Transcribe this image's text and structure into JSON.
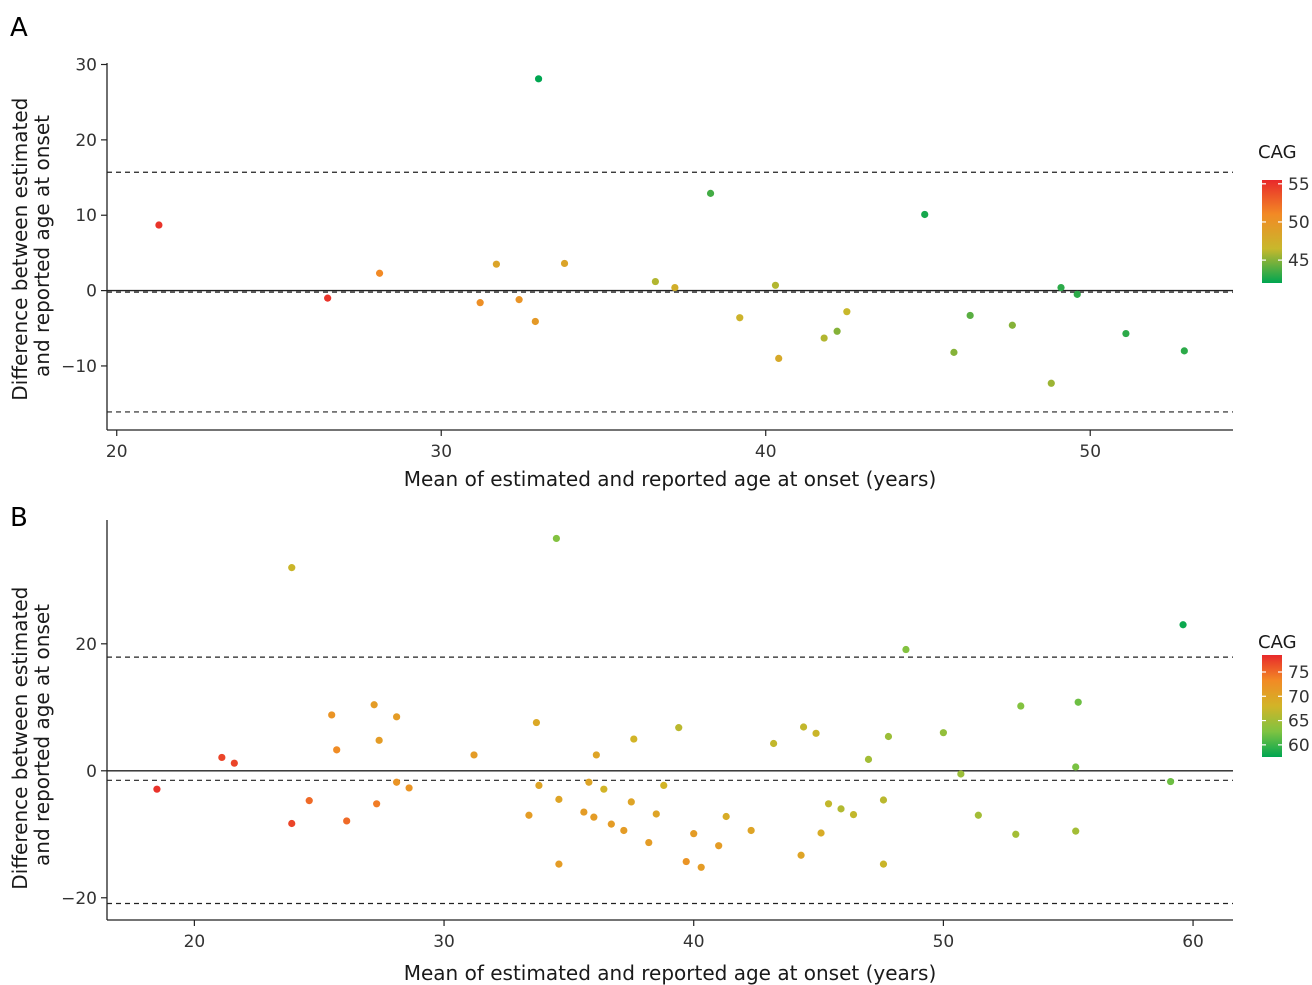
{
  "figure": {
    "panels": [
      "A",
      "B"
    ]
  },
  "chart_data": [
    {
      "type": "scatter",
      "panel": "A",
      "xlabel": "Mean of estimated and reported age at onset (years)",
      "ylabel": "Difference between estimated\nand reported age at onset",
      "xlim": [
        19.7,
        54.4
      ],
      "ylim": [
        -18.5,
        30.2
      ],
      "xticks": [
        20,
        30,
        40,
        50
      ],
      "yticks": [
        -10,
        0,
        10,
        20,
        30
      ],
      "reference_lines": {
        "zero": 0,
        "mean_difference": -0.2,
        "upper_limit": 15.7,
        "lower_limit": -16.1
      },
      "color_scale": {
        "title": "CAG",
        "min": 42,
        "max": 55.5,
        "ticks": [
          55,
          50,
          45
        ],
        "colors": [
          "#00a651",
          "#c8b82c",
          "#f28a25",
          "#e8292b"
        ]
      },
      "points": [
        {
          "x": 21.3,
          "y": 8.7,
          "cag": 55
        },
        {
          "x": 26.5,
          "y": -1.0,
          "cag": 55
        },
        {
          "x": 28.1,
          "y": 2.3,
          "cag": 51
        },
        {
          "x": 31.2,
          "y": -1.6,
          "cag": 50.5
        },
        {
          "x": 31.7,
          "y": 3.5,
          "cag": 48.5
        },
        {
          "x": 32.4,
          "y": -1.2,
          "cag": 50
        },
        {
          "x": 32.9,
          "y": -4.1,
          "cag": 49.5
        },
        {
          "x": 33.0,
          "y": 28.1,
          "cag": 42
        },
        {
          "x": 33.8,
          "y": 3.6,
          "cag": 48.5
        },
        {
          "x": 36.6,
          "y": 1.2,
          "cag": 46
        },
        {
          "x": 37.2,
          "y": 0.4,
          "cag": 47.5
        },
        {
          "x": 38.3,
          "y": 12.9,
          "cag": 43.5
        },
        {
          "x": 39.2,
          "y": -3.6,
          "cag": 47
        },
        {
          "x": 40.3,
          "y": 0.7,
          "cag": 46
        },
        {
          "x": 40.4,
          "y": -9.0,
          "cag": 48
        },
        {
          "x": 41.8,
          "y": -6.3,
          "cag": 46
        },
        {
          "x": 42.2,
          "y": -5.4,
          "cag": 45
        },
        {
          "x": 42.5,
          "y": -2.8,
          "cag": 46.5
        },
        {
          "x": 44.9,
          "y": 10.1,
          "cag": 42.5
        },
        {
          "x": 45.8,
          "y": -8.2,
          "cag": 45
        },
        {
          "x": 46.3,
          "y": -3.3,
          "cag": 44
        },
        {
          "x": 47.6,
          "y": -4.6,
          "cag": 45
        },
        {
          "x": 48.8,
          "y": -12.3,
          "cag": 45.5
        },
        {
          "x": 49.1,
          "y": 0.4,
          "cag": 43
        },
        {
          "x": 49.6,
          "y": -0.5,
          "cag": 43
        },
        {
          "x": 51.1,
          "y": -5.7,
          "cag": 43
        },
        {
          "x": 52.9,
          "y": -8.0,
          "cag": 43
        }
      ]
    },
    {
      "type": "scatter",
      "panel": "B",
      "xlabel": "Mean of estimated and reported age at onset (years)",
      "ylabel": "Difference between estimated\nand reported age at onset",
      "xlim": [
        16.5,
        61.6
      ],
      "ylim": [
        -23.5,
        39.5
      ],
      "xticks": [
        20,
        30,
        40,
        50,
        60
      ],
      "yticks": [
        -20,
        0,
        20
      ],
      "reference_lines": {
        "zero": 0,
        "mean_difference": -1.5,
        "upper_limit": 17.9,
        "lower_limit": -20.9
      },
      "color_scale": {
        "title": "CAG",
        "min": 57.5,
        "max": 78.5,
        "ticks": [
          75,
          70,
          65,
          60
        ],
        "colors": [
          "#00a651",
          "#7fc341",
          "#d2b427",
          "#f28a25",
          "#e8292b"
        ]
      },
      "points": [
        {
          "x": 18.5,
          "y": -2.9,
          "cag": 78
        },
        {
          "x": 21.1,
          "y": 2.1,
          "cag": 77
        },
        {
          "x": 21.6,
          "y": 1.2,
          "cag": 77
        },
        {
          "x": 23.9,
          "y": 32.0,
          "cag": 67.5
        },
        {
          "x": 23.9,
          "y": -8.3,
          "cag": 77
        },
        {
          "x": 24.6,
          "y": -4.7,
          "cag": 75
        },
        {
          "x": 25.5,
          "y": 8.8,
          "cag": 72
        },
        {
          "x": 25.7,
          "y": 3.3,
          "cag": 73
        },
        {
          "x": 26.1,
          "y": -7.9,
          "cag": 75
        },
        {
          "x": 27.2,
          "y": 10.4,
          "cag": 71
        },
        {
          "x": 27.3,
          "y": -5.2,
          "cag": 74
        },
        {
          "x": 27.4,
          "y": 4.8,
          "cag": 71
        },
        {
          "x": 28.1,
          "y": -1.8,
          "cag": 72
        },
        {
          "x": 28.1,
          "y": 8.5,
          "cag": 71
        },
        {
          "x": 28.6,
          "y": -2.7,
          "cag": 72
        },
        {
          "x": 31.2,
          "y": 2.5,
          "cag": 71
        },
        {
          "x": 33.4,
          "y": -7.0,
          "cag": 71
        },
        {
          "x": 33.7,
          "y": 7.6,
          "cag": 69.5
        },
        {
          "x": 33.8,
          "y": -2.3,
          "cag": 70
        },
        {
          "x": 34.5,
          "y": 36.6,
          "cag": 63
        },
        {
          "x": 34.6,
          "y": -4.5,
          "cag": 70
        },
        {
          "x": 34.6,
          "y": -14.7,
          "cag": 71
        },
        {
          "x": 35.6,
          "y": -6.5,
          "cag": 71
        },
        {
          "x": 35.8,
          "y": -1.8,
          "cag": 70
        },
        {
          "x": 36.0,
          "y": -7.3,
          "cag": 71
        },
        {
          "x": 36.1,
          "y": 2.5,
          "cag": 70
        },
        {
          "x": 36.4,
          "y": -2.9,
          "cag": 68
        },
        {
          "x": 36.7,
          "y": -8.4,
          "cag": 71
        },
        {
          "x": 37.2,
          "y": -9.4,
          "cag": 71
        },
        {
          "x": 37.5,
          "y": -4.9,
          "cag": 70
        },
        {
          "x": 37.6,
          "y": 5.0,
          "cag": 68
        },
        {
          "x": 38.2,
          "y": -11.3,
          "cag": 71
        },
        {
          "x": 38.5,
          "y": -6.8,
          "cag": 70
        },
        {
          "x": 38.8,
          "y": -2.3,
          "cag": 68
        },
        {
          "x": 39.4,
          "y": 6.8,
          "cag": 66.5
        },
        {
          "x": 39.7,
          "y": -14.3,
          "cag": 72
        },
        {
          "x": 40.0,
          "y": -9.9,
          "cag": 71
        },
        {
          "x": 40.3,
          "y": -15.2,
          "cag": 71
        },
        {
          "x": 41.0,
          "y": -11.8,
          "cag": 71
        },
        {
          "x": 41.3,
          "y": -7.2,
          "cag": 69
        },
        {
          "x": 42.3,
          "y": -9.4,
          "cag": 70
        },
        {
          "x": 43.2,
          "y": 4.3,
          "cag": 67
        },
        {
          "x": 44.3,
          "y": -13.3,
          "cag": 70
        },
        {
          "x": 44.4,
          "y": 6.9,
          "cag": 67
        },
        {
          "x": 44.9,
          "y": 5.9,
          "cag": 67.5
        },
        {
          "x": 45.1,
          "y": -9.8,
          "cag": 69
        },
        {
          "x": 45.4,
          "y": -5.2,
          "cag": 67
        },
        {
          "x": 45.9,
          "y": -6.0,
          "cag": 66
        },
        {
          "x": 46.4,
          "y": -6.9,
          "cag": 67
        },
        {
          "x": 47.0,
          "y": 1.8,
          "cag": 65
        },
        {
          "x": 47.6,
          "y": -4.6,
          "cag": 66.5
        },
        {
          "x": 47.6,
          "y": -14.7,
          "cag": 67.5
        },
        {
          "x": 47.8,
          "y": 5.4,
          "cag": 64.5
        },
        {
          "x": 48.5,
          "y": 19.1,
          "cag": 63
        },
        {
          "x": 50.0,
          "y": 6.0,
          "cag": 64
        },
        {
          "x": 50.7,
          "y": -0.5,
          "cag": 64.5
        },
        {
          "x": 51.4,
          "y": -7.0,
          "cag": 65
        },
        {
          "x": 52.9,
          "y": -10.0,
          "cag": 65
        },
        {
          "x": 53.1,
          "y": 10.2,
          "cag": 63
        },
        {
          "x": 55.3,
          "y": -9.5,
          "cag": 65
        },
        {
          "x": 55.3,
          "y": 0.6,
          "cag": 62.5
        },
        {
          "x": 55.4,
          "y": 10.8,
          "cag": 62
        },
        {
          "x": 59.1,
          "y": -1.7,
          "cag": 62
        },
        {
          "x": 59.6,
          "y": 23.0,
          "cag": 58
        }
      ]
    }
  ]
}
